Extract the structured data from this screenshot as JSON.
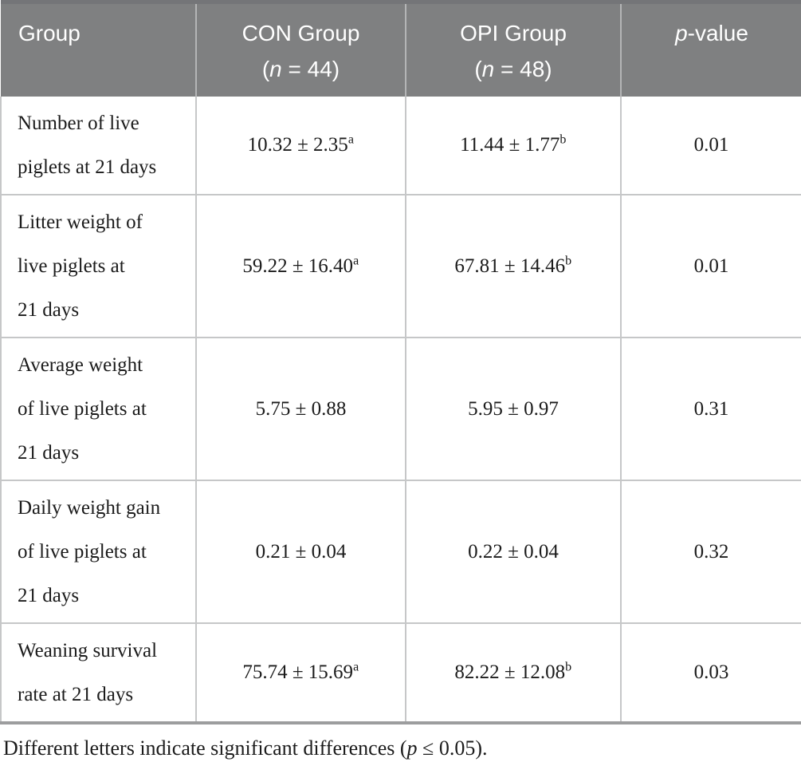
{
  "table": {
    "header": {
      "group": "Group",
      "con": {
        "title": "CON Group",
        "paren_open": "(",
        "n_char": "n",
        "n_rest": " = 44)"
      },
      "opi": {
        "title": "OPI Group",
        "paren_open": "(",
        "n_char": "n",
        "n_rest": " = 48)"
      },
      "p": {
        "italic": "p",
        "rest": "-value"
      }
    },
    "rows": [
      {
        "label": "Number of live\npiglets at 21 days",
        "con": "10.32 ± 2.35",
        "con_sup": "a",
        "opi": "11.44 ± 1.77",
        "opi_sup": "b",
        "p": "0.01"
      },
      {
        "label": "Litter weight of\nlive piglets at\n21 days",
        "con": "59.22 ± 16.40",
        "con_sup": "a",
        "opi": "67.81 ± 14.46",
        "opi_sup": "b",
        "p": "0.01"
      },
      {
        "label": "Average weight\nof live piglets at\n21 days",
        "con": "5.75 ± 0.88",
        "con_sup": "",
        "opi": "5.95 ± 0.97",
        "opi_sup": "",
        "p": "0.31"
      },
      {
        "label": "Daily weight gain\nof live piglets at\n21 days",
        "con": "0.21 ± 0.04",
        "con_sup": "",
        "opi": "0.22 ± 0.04",
        "opi_sup": "",
        "p": "0.32"
      },
      {
        "label": "Weaning survival\nrate at 21 days",
        "con": "75.74 ± 15.69",
        "con_sup": "a",
        "opi": "82.22 ± 12.08",
        "opi_sup": "b",
        "p": "0.03"
      }
    ],
    "footnote": {
      "before": "Different letters indicate significant differences (",
      "p_italic": "p",
      "after": " ≤ 0.05)."
    }
  },
  "colors": {
    "header_bg": "#7f8081",
    "header_text": "#ffffff",
    "header_divider": "#b4b5b6",
    "body_border": "#c6c7c8",
    "table_top_border": "#747578",
    "table_bottom_border": "#9c9d9e",
    "body_text": "#1b1b1b"
  }
}
